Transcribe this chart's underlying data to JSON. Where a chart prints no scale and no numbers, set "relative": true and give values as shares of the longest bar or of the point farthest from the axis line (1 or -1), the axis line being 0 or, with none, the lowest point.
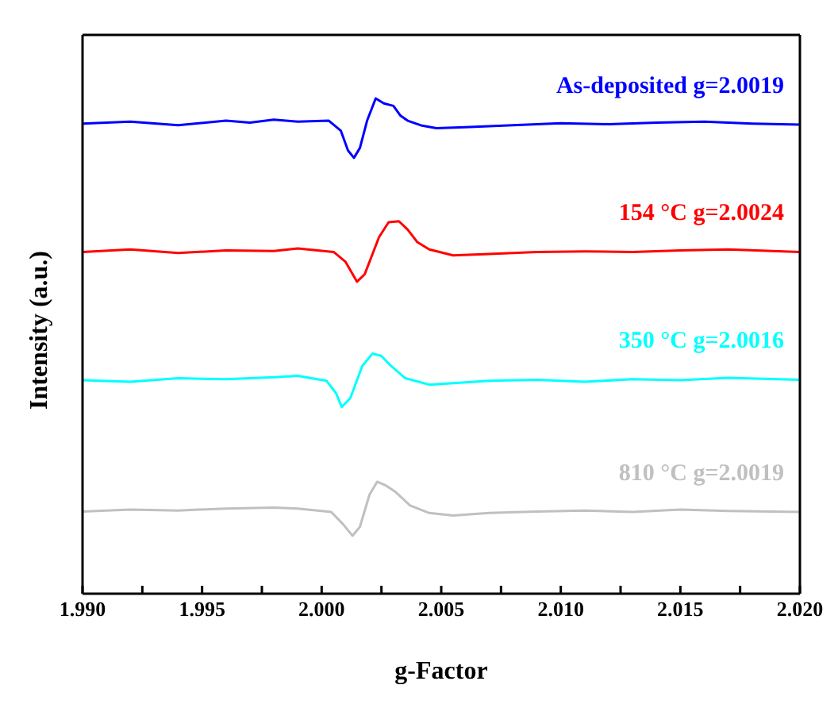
{
  "chart_data": {
    "type": "line",
    "xlabel": "g-Factor",
    "ylabel": "Intensity (a.u.)",
    "relative": true,
    "legend": false,
    "marker": "none",
    "line_style": "solid",
    "grid": false,
    "xlim": [
      1.99,
      2.02
    ],
    "xticks": [
      {
        "value": 1.99,
        "label": "1.990"
      },
      {
        "value": 1.9925,
        "label": null
      },
      {
        "value": 1.995,
        "label": "1.995"
      },
      {
        "value": 1.9975,
        "label": null
      },
      {
        "value": 2.0,
        "label": "2.000"
      },
      {
        "value": 2.0025,
        "label": null
      },
      {
        "value": 2.005,
        "label": "2.005"
      },
      {
        "value": 2.0075,
        "label": null
      },
      {
        "value": 2.01,
        "label": "2.010"
      },
      {
        "value": 2.0125,
        "label": null
      },
      {
        "value": 2.015,
        "label": "2.015"
      },
      {
        "value": 2.0175,
        "label": null
      },
      {
        "value": 2.02,
        "label": "2.020"
      }
    ],
    "series": [
      {
        "name": "As-deposited g=2.0019",
        "color": "#0000ff",
        "x": [
          1.99,
          1.992,
          1.994,
          1.996,
          1.997,
          1.998,
          1.999,
          2.0003,
          2.0008,
          2.0011,
          2.00135,
          2.0016,
          2.0019,
          2.00226,
          2.0026,
          2.003,
          2.0033,
          2.0036,
          2.0042,
          2.0048,
          2.006,
          2.008,
          2.01,
          2.012,
          2.014,
          2.016,
          2.018,
          2.02
        ],
        "values": [
          0.949,
          0.953,
          0.946,
          0.955,
          0.951,
          0.957,
          0.953,
          0.955,
          0.935,
          0.895,
          0.88,
          0.9,
          0.955,
          1.0,
          0.99,
          0.985,
          0.965,
          0.955,
          0.945,
          0.94,
          0.942,
          0.946,
          0.95,
          0.948,
          0.951,
          0.953,
          0.949,
          0.947
        ]
      },
      {
        "name": "154 °C g=2.0024",
        "color": "#ff0000",
        "x": [
          1.99,
          1.992,
          1.994,
          1.996,
          1.998,
          1.999,
          2.0005,
          2.001,
          2.00148,
          2.0018,
          2.0024,
          2.0028,
          2.00323,
          2.0036,
          2.004,
          2.0045,
          2.0055,
          2.007,
          2.009,
          2.011,
          2.013,
          2.015,
          2.017,
          2.02
        ],
        "values": [
          0.69,
          0.695,
          0.688,
          0.693,
          0.692,
          0.697,
          0.69,
          0.67,
          0.63,
          0.645,
          0.72,
          0.75,
          0.752,
          0.735,
          0.71,
          0.695,
          0.683,
          0.686,
          0.69,
          0.691,
          0.69,
          0.693,
          0.695,
          0.69
        ]
      },
      {
        "name": "350 °C g=2.0016",
        "color": "#00ffff",
        "x": [
          1.99,
          1.992,
          1.994,
          1.996,
          1.998,
          1.999,
          2.0002,
          2.0006,
          2.00084,
          2.0012,
          2.0017,
          2.00213,
          2.0025,
          2.0029,
          2.0035,
          2.0045,
          2.0055,
          2.007,
          2.009,
          2.011,
          2.013,
          2.015,
          2.017,
          2.02
        ],
        "values": [
          0.431,
          0.428,
          0.435,
          0.433,
          0.437,
          0.44,
          0.43,
          0.405,
          0.377,
          0.395,
          0.46,
          0.485,
          0.48,
          0.46,
          0.435,
          0.422,
          0.425,
          0.43,
          0.432,
          0.428,
          0.433,
          0.431,
          0.436,
          0.432
        ]
      },
      {
        "name": "810 °C g=2.0019",
        "color": "#c0c0c0",
        "x": [
          1.99,
          1.992,
          1.994,
          1.996,
          1.998,
          1.999,
          2.0004,
          2.0009,
          2.00129,
          2.0016,
          2.002,
          2.00232,
          2.0027,
          2.0031,
          2.0037,
          2.0045,
          2.0055,
          2.007,
          2.009,
          2.011,
          2.013,
          2.015,
          2.017,
          2.02
        ],
        "values": [
          0.166,
          0.17,
          0.168,
          0.172,
          0.174,
          0.172,
          0.165,
          0.14,
          0.117,
          0.135,
          0.2,
          0.226,
          0.218,
          0.205,
          0.178,
          0.163,
          0.158,
          0.163,
          0.166,
          0.168,
          0.165,
          0.17,
          0.167,
          0.165
        ]
      }
    ]
  }
}
